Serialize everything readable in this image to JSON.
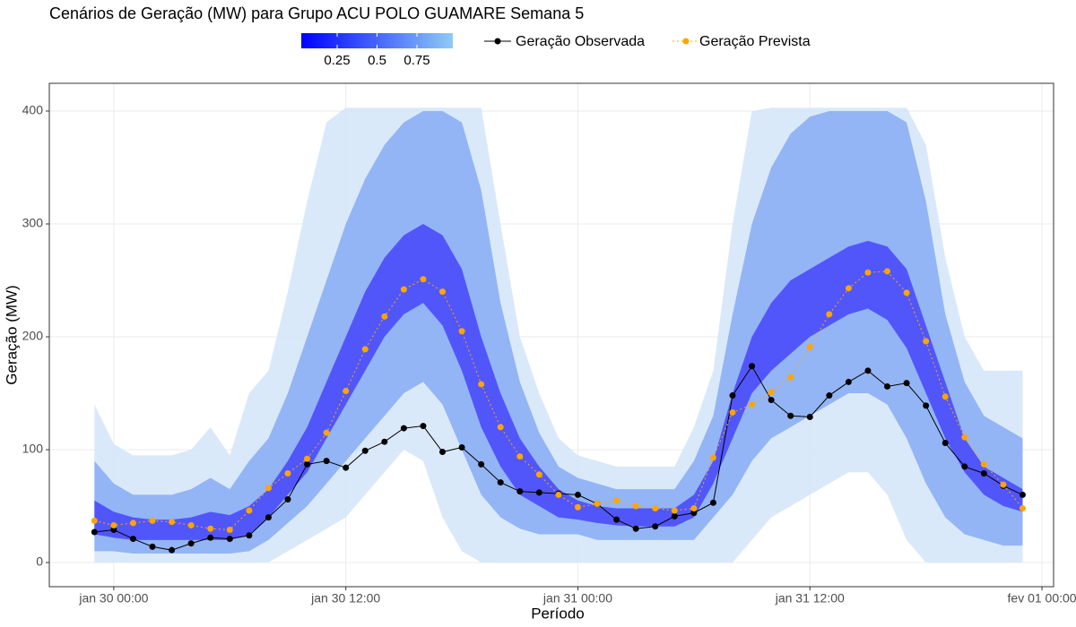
{
  "chart_data": {
    "type": "fan",
    "title": "Cenários de Geração (MW) para Grupo ACU POLO GUAMARE Semana 5",
    "x_label": "Período",
    "y_label": "Geração (MW)",
    "x": [
      "jan 29 23:00",
      "jan 30 00:00",
      "jan 30 01:00",
      "jan 30 02:00",
      "jan 30 03:00",
      "jan 30 04:00",
      "jan 30 05:00",
      "jan 30 06:00",
      "jan 30 07:00",
      "jan 30 08:00",
      "jan 30 09:00",
      "jan 30 10:00",
      "jan 30 11:00",
      "jan 30 12:00",
      "jan 30 13:00",
      "jan 30 14:00",
      "jan 30 15:00",
      "jan 30 16:00",
      "jan 30 17:00",
      "jan 30 18:00",
      "jan 30 19:00",
      "jan 30 20:00",
      "jan 30 21:00",
      "jan 30 22:00",
      "jan 30 23:00",
      "jan 31 00:00",
      "jan 31 01:00",
      "jan 31 02:00",
      "jan 31 03:00",
      "jan 31 04:00",
      "jan 31 05:00",
      "jan 31 06:00",
      "jan 31 07:00",
      "jan 31 08:00",
      "jan 31 09:00",
      "jan 31 10:00",
      "jan 31 11:00",
      "jan 31 12:00",
      "jan 31 13:00",
      "jan 31 14:00",
      "jan 31 15:00",
      "jan 31 16:00",
      "jan 31 17:00",
      "jan 31 18:00",
      "jan 31 19:00",
      "jan 31 20:00",
      "jan 31 21:00",
      "jan 31 22:00",
      "jan 31 23:00"
    ],
    "bands": [
      {
        "color": "#d3e5f8",
        "upper": [
          140,
          105,
          95,
          95,
          95,
          100,
          120,
          95,
          150,
          170,
          240,
          320,
          390,
          403,
          403,
          403,
          403,
          403,
          403,
          403,
          403,
          300,
          200,
          150,
          110,
          95,
          90,
          85,
          85,
          85,
          85,
          120,
          170,
          300,
          400,
          403,
          403,
          403,
          403,
          403,
          403,
          403,
          403,
          370,
          270,
          200,
          170,
          170,
          170
        ],
        "lower": [
          0,
          0,
          0,
          0,
          0,
          0,
          0,
          0,
          0,
          0,
          10,
          20,
          30,
          40,
          60,
          80,
          100,
          90,
          40,
          10,
          0,
          0,
          0,
          0,
          0,
          0,
          0,
          0,
          0,
          0,
          0,
          0,
          0,
          0,
          20,
          40,
          50,
          60,
          70,
          80,
          80,
          60,
          20,
          0,
          0,
          0,
          0,
          0,
          0
        ]
      },
      {
        "color": "#86acf4",
        "upper": [
          90,
          70,
          60,
          60,
          60,
          65,
          75,
          65,
          90,
          110,
          150,
          200,
          250,
          300,
          340,
          370,
          390,
          400,
          400,
          390,
          330,
          230,
          160,
          115,
          85,
          75,
          70,
          65,
          65,
          65,
          65,
          90,
          130,
          220,
          300,
          350,
          380,
          395,
          400,
          400,
          400,
          400,
          390,
          320,
          220,
          160,
          130,
          120,
          110
        ],
        "lower": [
          10,
          10,
          8,
          8,
          8,
          8,
          8,
          8,
          10,
          20,
          35,
          50,
          70,
          90,
          110,
          130,
          150,
          160,
          140,
          100,
          60,
          40,
          30,
          25,
          25,
          25,
          20,
          20,
          20,
          20,
          20,
          20,
          40,
          60,
          90,
          110,
          120,
          130,
          140,
          150,
          150,
          140,
          110,
          70,
          40,
          25,
          20,
          15,
          15
        ]
      },
      {
        "color": "#4545fb",
        "upper": [
          55,
          45,
          40,
          38,
          38,
          40,
          45,
          42,
          50,
          65,
          90,
          120,
          160,
          200,
          240,
          270,
          290,
          300,
          290,
          260,
          200,
          150,
          110,
          85,
          65,
          55,
          50,
          48,
          48,
          48,
          48,
          60,
          90,
          150,
          200,
          230,
          250,
          260,
          270,
          280,
          285,
          280,
          260,
          210,
          160,
          110,
          85,
          75,
          65
        ],
        "lower": [
          25,
          22,
          20,
          20,
          20,
          20,
          20,
          20,
          25,
          40,
          60,
          80,
          110,
          140,
          170,
          200,
          220,
          230,
          210,
          170,
          120,
          85,
          60,
          50,
          40,
          38,
          35,
          33,
          32,
          32,
          32,
          40,
          70,
          110,
          150,
          170,
          185,
          200,
          210,
          220,
          225,
          215,
          190,
          150,
          110,
          80,
          60,
          50,
          45
        ]
      }
    ],
    "series": [
      {
        "name": "Geração Observada",
        "color": "#000000",
        "values": [
          27,
          29,
          21,
          14,
          11,
          17,
          22,
          21,
          24,
          40,
          56,
          87,
          90,
          84,
          99,
          107,
          119,
          121,
          98,
          102,
          87,
          71,
          63,
          62,
          61,
          60,
          52,
          38,
          30,
          32,
          41,
          44,
          53,
          148,
          174,
          144,
          130,
          129,
          148,
          160,
          170,
          156,
          159,
          139,
          106,
          85,
          79,
          68,
          60
        ]
      },
      {
        "name": "Geração Prevista",
        "color": "#ffa500",
        "values": [
          37,
          33,
          35,
          37,
          36,
          33,
          30,
          29,
          46,
          66,
          79,
          92,
          115,
          152,
          189,
          218,
          242,
          251,
          240,
          205,
          158,
          120,
          94,
          78,
          60,
          49,
          52,
          55,
          50,
          48,
          46,
          48,
          93,
          133,
          140,
          151,
          164,
          191,
          220,
          243,
          257,
          258,
          239,
          196,
          147,
          111,
          87,
          69,
          48
        ]
      }
    ],
    "colorbar": {
      "colors": [
        "#0000ff",
        "#8ecbf5"
      ],
      "lim": [
        0.025,
        0.975
      ],
      "ticks": [
        0.25,
        0.5,
        0.75
      ]
    },
    "xlim": [
      "jan 29 20:40",
      "fev 01 00:36"
    ],
    "xticks": [
      "jan 30 00:00",
      "jan 30 12:00",
      "jan 31 00:00",
      "jan 31 12:00",
      "fev 01 00:00"
    ],
    "ylim": [
      -21.4,
      424.6
    ],
    "yticks": [
      0,
      100,
      200,
      300,
      400
    ],
    "grid": true
  }
}
